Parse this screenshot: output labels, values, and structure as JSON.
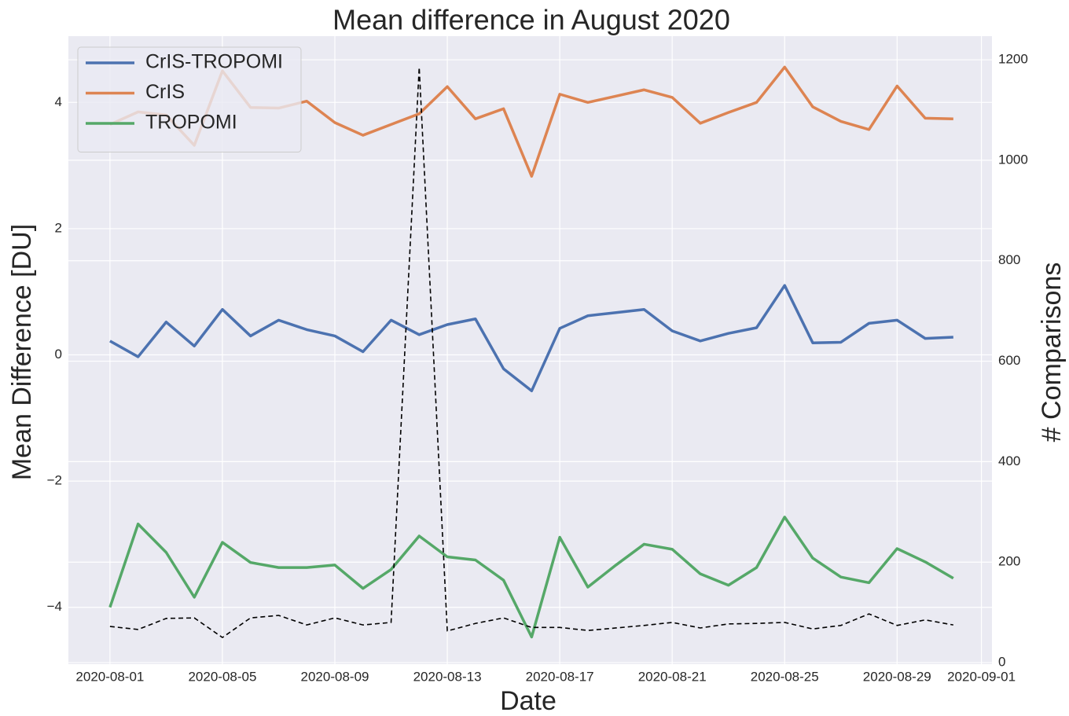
{
  "chart_data": {
    "type": "line",
    "title": "Mean difference in August 2020",
    "xlabel": "Date",
    "ylabel": "Mean Difference [DU]",
    "y2label": "# Comparisons",
    "x": [
      "2020-08-01",
      "2020-08-02",
      "2020-08-03",
      "2020-08-04",
      "2020-08-05",
      "2020-08-06",
      "2020-08-07",
      "2020-08-08",
      "2020-08-09",
      "2020-08-10",
      "2020-08-11",
      "2020-08-12",
      "2020-08-13",
      "2020-08-14",
      "2020-08-15",
      "2020-08-16",
      "2020-08-17",
      "2020-08-18",
      "2020-08-19",
      "2020-08-20",
      "2020-08-21",
      "2020-08-22",
      "2020-08-23",
      "2020-08-24",
      "2020-08-25",
      "2020-08-26",
      "2020-08-27",
      "2020-08-28",
      "2020-08-29",
      "2020-08-30",
      "2020-08-31"
    ],
    "series": [
      {
        "name": "CrIS-TROPOMI",
        "color": "#4c72b0",
        "values": [
          0.22,
          -0.03,
          0.52,
          0.14,
          0.72,
          0.3,
          0.55,
          0.4,
          0.3,
          0.05,
          0.55,
          0.32,
          0.48,
          0.57,
          -0.22,
          -0.57,
          0.42,
          0.62,
          0.67,
          0.72,
          0.38,
          0.22,
          0.34,
          0.43,
          1.1,
          0.19,
          0.2,
          0.5,
          0.55,
          0.26,
          0.28
        ]
      },
      {
        "name": "CrIS",
        "color": "#dd8452",
        "values": [
          3.65,
          3.85,
          3.8,
          3.32,
          4.5,
          3.92,
          3.91,
          4.02,
          3.68,
          3.48,
          3.65,
          3.82,
          4.25,
          3.74,
          3.9,
          2.83,
          4.13,
          4.0,
          4.1,
          4.2,
          4.08,
          3.67,
          3.84,
          4.0,
          4.56,
          3.93,
          3.7,
          3.57,
          4.26,
          3.75,
          3.74
        ]
      },
      {
        "name": "TROPOMI",
        "color": "#55a868",
        "values": [
          -4.0,
          -2.68,
          -3.13,
          -3.84,
          -2.97,
          -3.29,
          -3.37,
          -3.37,
          -3.33,
          -3.7,
          -3.4,
          -2.87,
          -3.2,
          -3.25,
          -3.57,
          -4.47,
          -2.89,
          -3.68,
          -3.33,
          -3.0,
          -3.08,
          -3.47,
          -3.65,
          -3.37,
          -2.57,
          -3.22,
          -3.52,
          -3.61,
          -3.07,
          -3.28,
          -3.54
        ]
      },
      {
        "color": "#000000",
        "axis": "y2",
        "dashed": true,
        "values": [
          72,
          66,
          88,
          89,
          50,
          89,
          94,
          75,
          89,
          75,
          80,
          1185,
          63,
          78,
          89,
          70,
          70,
          64,
          69,
          74,
          80,
          69,
          77,
          78,
          80,
          67,
          74,
          97,
          74,
          85,
          75
        ]
      }
    ],
    "xlim": [
      "2020-07-30T12:30:00Z",
      "2020-09-01T09:00:00Z"
    ],
    "xticks": [
      "2020-08-01",
      "2020-08-05",
      "2020-08-09",
      "2020-08-13",
      "2020-08-17",
      "2020-08-21",
      "2020-08-25",
      "2020-08-29",
      "2020-09-01"
    ],
    "ylim": [
      -4.9,
      5.05
    ],
    "yticks": [
      {
        "value": -4,
        "label": "−4"
      },
      {
        "value": -2,
        "label": "−2"
      },
      0,
      2,
      4
    ],
    "y2lim": [
      -3,
      1247
    ],
    "y2ticks": [
      0,
      200,
      400,
      600,
      800,
      1000,
      1200
    ],
    "grid": true,
    "legend": "upper left"
  }
}
